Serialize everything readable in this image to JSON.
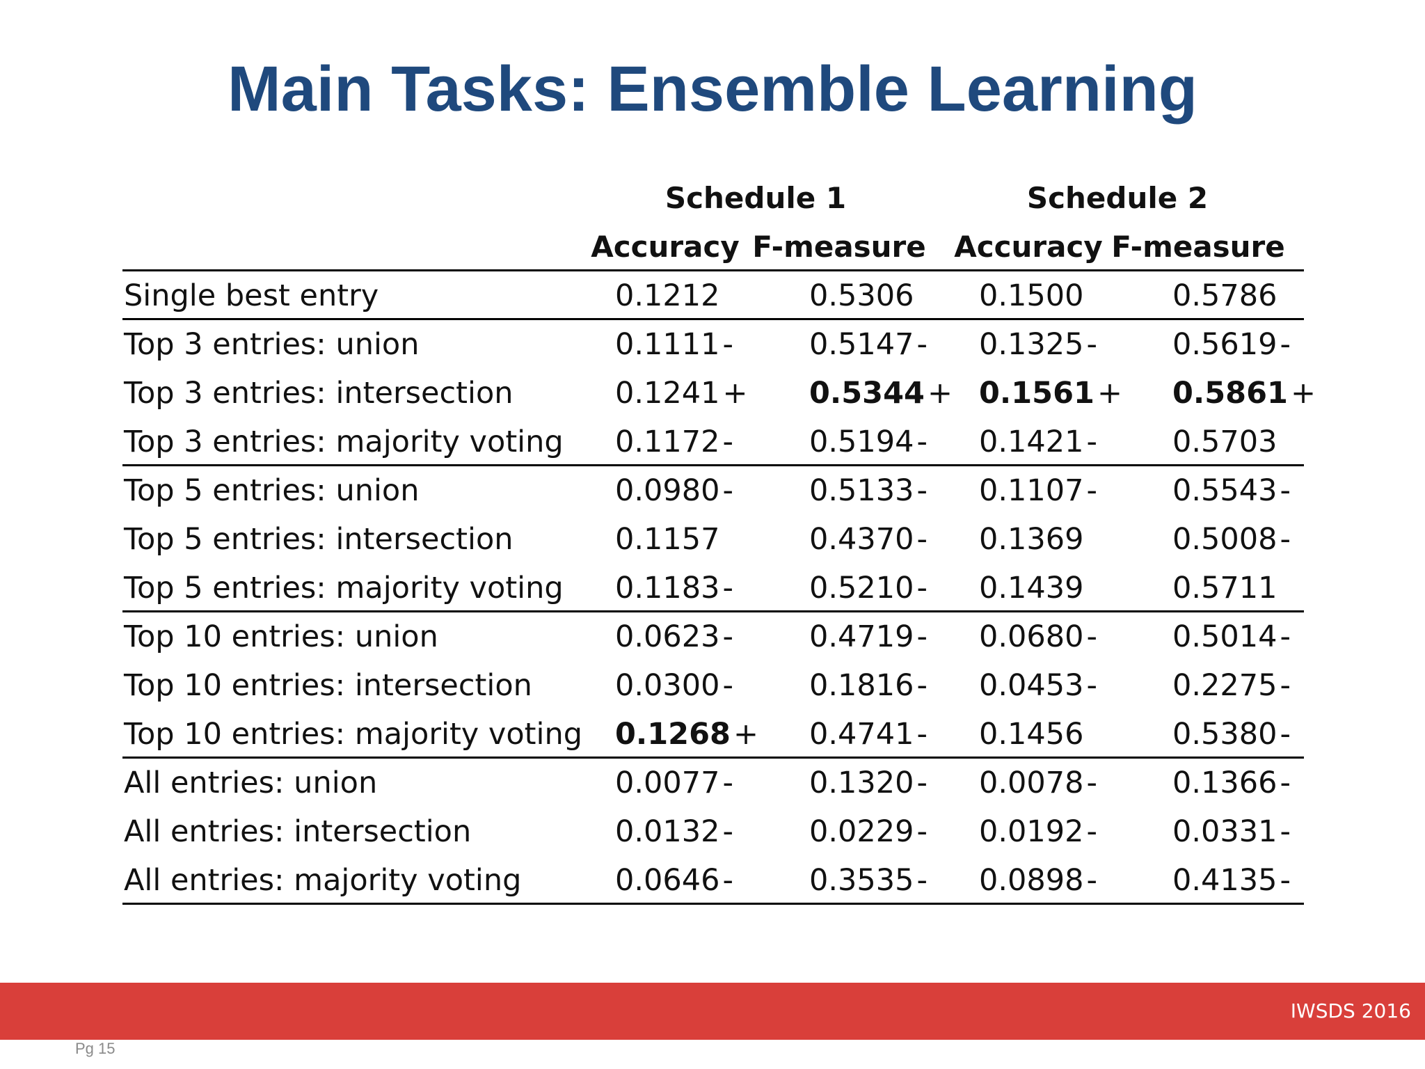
{
  "title": "Main Tasks: Ensemble Learning",
  "table": {
    "schedule_headers": [
      "Schedule 1",
      "Schedule 2"
    ],
    "column_headers": [
      "Accuracy",
      "F-measure",
      "Accuracy",
      "F-measure"
    ],
    "rows": [
      {
        "label": "Single best entry",
        "cells": [
          {
            "v": "0.1212",
            "m": ""
          },
          {
            "v": "0.5306",
            "m": ""
          },
          {
            "v": "0.1500",
            "m": ""
          },
          {
            "v": "0.5786",
            "m": ""
          }
        ],
        "group_end": true
      },
      {
        "label": "Top 3 entries: union",
        "cells": [
          {
            "v": "0.1111",
            "m": "-"
          },
          {
            "v": "0.5147",
            "m": "-"
          },
          {
            "v": "0.1325",
            "m": "-"
          },
          {
            "v": "0.5619",
            "m": "-"
          }
        ]
      },
      {
        "label": "Top 3 entries: intersection",
        "cells": [
          {
            "v": "0.1241",
            "m": "+"
          },
          {
            "v": "0.5344",
            "m": "+",
            "bold": true
          },
          {
            "v": "0.1561",
            "m": "+",
            "bold": true
          },
          {
            "v": "0.5861",
            "m": "+",
            "bold": true
          }
        ]
      },
      {
        "label": "Top 3 entries: majority voting",
        "cells": [
          {
            "v": "0.1172",
            "m": "-"
          },
          {
            "v": "0.5194",
            "m": "-"
          },
          {
            "v": "0.1421",
            "m": "-"
          },
          {
            "v": "0.5703",
            "m": ""
          }
        ],
        "group_end": true
      },
      {
        "label": "Top 5 entries: union",
        "cells": [
          {
            "v": "0.0980",
            "m": "-"
          },
          {
            "v": "0.5133",
            "m": "-"
          },
          {
            "v": "0.1107",
            "m": "-"
          },
          {
            "v": "0.5543",
            "m": "-"
          }
        ]
      },
      {
        "label": "Top 5 entries: intersection",
        "cells": [
          {
            "v": "0.1157",
            "m": ""
          },
          {
            "v": "0.4370",
            "m": "-"
          },
          {
            "v": "0.1369",
            "m": ""
          },
          {
            "v": "0.5008",
            "m": "-"
          }
        ]
      },
      {
        "label": "Top 5 entries: majority voting",
        "cells": [
          {
            "v": "0.1183",
            "m": "-"
          },
          {
            "v": "0.5210",
            "m": "-"
          },
          {
            "v": "0.1439",
            "m": ""
          },
          {
            "v": "0.5711",
            "m": ""
          }
        ],
        "group_end": true
      },
      {
        "label": "Top 10 entries: union",
        "cells": [
          {
            "v": "0.0623",
            "m": "-"
          },
          {
            "v": "0.4719",
            "m": "-"
          },
          {
            "v": "0.0680",
            "m": "-"
          },
          {
            "v": "0.5014",
            "m": "-"
          }
        ]
      },
      {
        "label": "Top 10 entries: intersection",
        "cells": [
          {
            "v": "0.0300",
            "m": "-"
          },
          {
            "v": "0.1816",
            "m": "-"
          },
          {
            "v": "0.0453",
            "m": "-"
          },
          {
            "v": "0.2275",
            "m": "-"
          }
        ]
      },
      {
        "label": "Top 10 entries: majority voting",
        "cells": [
          {
            "v": "0.1268",
            "m": "+",
            "bold": true
          },
          {
            "v": "0.4741",
            "m": "-"
          },
          {
            "v": "0.1456",
            "m": ""
          },
          {
            "v": "0.5380",
            "m": "-"
          }
        ],
        "group_end": true
      },
      {
        "label": "All entries: union",
        "cells": [
          {
            "v": "0.0077",
            "m": "-"
          },
          {
            "v": "0.1320",
            "m": "-"
          },
          {
            "v": "0.0078",
            "m": "-"
          },
          {
            "v": "0.1366",
            "m": "-"
          }
        ]
      },
      {
        "label": "All entries: intersection",
        "cells": [
          {
            "v": "0.0132",
            "m": "-"
          },
          {
            "v": "0.0229",
            "m": "-"
          },
          {
            "v": "0.0192",
            "m": "-"
          },
          {
            "v": "0.0331",
            "m": "-"
          }
        ]
      },
      {
        "label": "All entries: majority voting",
        "cells": [
          {
            "v": "0.0646",
            "m": "-"
          },
          {
            "v": "0.3535",
            "m": "-"
          },
          {
            "v": "0.0898",
            "m": "-"
          },
          {
            "v": "0.4135",
            "m": "-"
          }
        ],
        "group_end": true
      }
    ]
  },
  "footer": {
    "conference": "IWSDS 2016",
    "page_label": "Pg 15"
  },
  "colors": {
    "title": "#1f497d",
    "footer_bar": "#d93f3a"
  }
}
